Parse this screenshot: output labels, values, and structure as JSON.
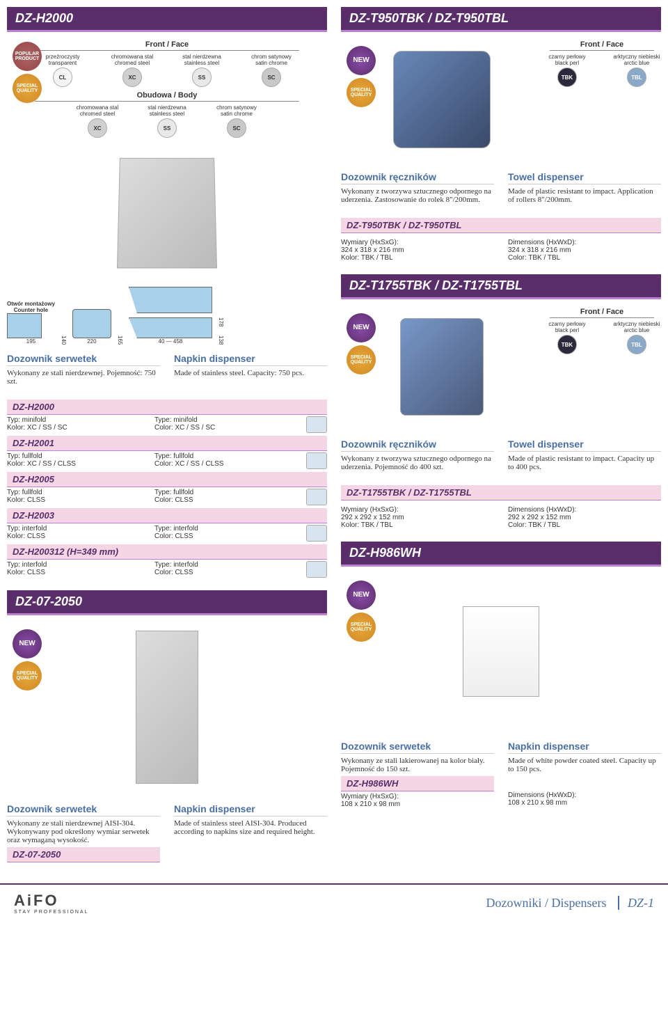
{
  "left": {
    "h2000": {
      "title": "DZ-H2000",
      "front_label": "Front / Face",
      "body_label": "Obudowa / Body",
      "front_swatches": [
        {
          "code": "CL",
          "pl": "przeźroczysty",
          "en": "transparent",
          "cls": "cl"
        },
        {
          "code": "XC",
          "pl": "chromowana stal",
          "en": "chromed steel",
          "cls": "xc"
        },
        {
          "code": "SS",
          "pl": "stal nierdzewna",
          "en": "stainless steel",
          "cls": "ss"
        },
        {
          "code": "SC",
          "pl": "chrom satynowy",
          "en": "satin chrome",
          "cls": "sc"
        }
      ],
      "body_swatches": [
        {
          "code": "XC",
          "pl": "chromowana stal",
          "en": "chromed steel",
          "cls": "xc"
        },
        {
          "code": "SS",
          "pl": "stal nierdzewna",
          "en": "stainless steel",
          "cls": "ss"
        },
        {
          "code": "SC",
          "pl": "chrom satynowy",
          "en": "satin chrome",
          "cls": "sc"
        }
      ],
      "badges": [
        "POPULAR PRODUCT",
        "SPECIAL QUALITY"
      ],
      "counter_hole": "Otwór montażowy\nCounter hole",
      "dims": {
        "a": "140",
        "b": "195",
        "c": "165",
        "d": "220",
        "e": "40",
        "f": "458",
        "g": "178",
        "h": "138"
      },
      "desc_pl_title": "Dozownik serwetek",
      "desc_pl": "Wykonany ze stali nierdzewnej. Pojemność: 750 szt.",
      "desc_en_title": "Napkin dispenser",
      "desc_en": "Made of stainless steel. Capacity: 750 pcs.",
      "variants": [
        {
          "model": "DZ-H2000",
          "pl": "Typ: minifold\nKolor: XC / SS / SC",
          "en": "Type: minifold\nColor: XC / SS / SC"
        },
        {
          "model": "DZ-H2001",
          "pl": "Typ: fullfold\nKolor: XC / SS / CLSS",
          "en": "Type: fullfold\nColor: XC / SS / CLSS"
        },
        {
          "model": "DZ-H2005",
          "pl": "Typ: fullfold\nKolor: CLSS",
          "en": "Type: fullfold\nColor: CLSS"
        },
        {
          "model": "DZ-H2003",
          "pl": "Typ: interfold\nKolor: CLSS",
          "en": "Type: interfold\nColor: CLSS"
        },
        {
          "model": "DZ-H200312 (H=349 mm)",
          "pl": "Typ: interfold\nKolor: CLSS",
          "en": "Type: interfold\nColor: CLSS"
        }
      ]
    },
    "dz07": {
      "title": "DZ-07-2050",
      "badges": [
        "NEW",
        "SPECIAL QUALITY"
      ],
      "desc_pl_title": "Dozownik serwetek",
      "desc_pl": "Wykonany ze stali nierdzewnej AISI-304. Wykonywany pod określony wymiar serwetek oraz wymaganą wysokość.",
      "desc_en_title": "Napkin dispenser",
      "desc_en": "Made of stainless steel AISI-304. Produced according to napkins size and required height.",
      "model": "DZ-07-2050"
    }
  },
  "right": {
    "t950": {
      "title": "DZ-T950TBK / DZ-T950TBL",
      "front_label": "Front / Face",
      "swatches": [
        {
          "code": "TBK",
          "pl": "czarny perłowy",
          "en": "black perl",
          "cls": "tbk"
        },
        {
          "code": "TBL",
          "pl": "arktyczny niebieski",
          "en": "arctic blue",
          "cls": "tbl"
        }
      ],
      "badges": [
        "NEW",
        "SPECIAL QUALITY"
      ],
      "desc_pl_title": "Dozownik ręczników",
      "desc_pl": "Wykonany z tworzywa sztucznego odpornego na uderzenia. Zastosowanie do rolek 8\"/200mm.",
      "desc_en_title": "Towel dispenser",
      "desc_en": "Made of plastic resistant to impact. Application of rollers 8\"/200mm.",
      "model": "DZ-T950TBK / DZ-T950TBL",
      "spec_pl": "Wymiary (HxSxG):\n324 x 318 x 216 mm\nKolor: TBK / TBL",
      "spec_en": "Dimensions (HxWxD):\n324 x 318 x 216 mm\nColor: TBK / TBL"
    },
    "t1755": {
      "title": "DZ-T1755TBK / DZ-T1755TBL",
      "front_label": "Front / Face",
      "swatches": [
        {
          "code": "TBK",
          "pl": "czarny perłowy",
          "en": "black perl",
          "cls": "tbk"
        },
        {
          "code": "TBL",
          "pl": "arktyczny niebieski",
          "en": "arctic blue",
          "cls": "tbl"
        }
      ],
      "badges": [
        "NEW",
        "SPECIAL QUALITY"
      ],
      "desc_pl_title": "Dozownik ręczników",
      "desc_pl": "Wykonany z tworzywa sztucznego odpornego na uderzenia. Pojemność do 400 szt.",
      "desc_en_title": "Towel dispenser",
      "desc_en": "Made of plastic resistant to impact. Capacity up to 400 pcs.",
      "model": "DZ-T1755TBK / DZ-T1755TBL",
      "spec_pl": "Wymiary (HxSxG):\n292 x 292 x 152 mm\nKolor: TBK / TBL",
      "spec_en": "Dimensions (HxWxD):\n292 x 292 x 152 mm\nColor: TBK / TBL"
    },
    "h986": {
      "title": "DZ-H986WH",
      "badges": [
        "NEW",
        "SPECIAL QUALITY"
      ],
      "desc_pl_title": "Dozownik serwetek",
      "desc_pl": "Wykonany ze stali lakierowanej na kolor biały. Pojemność do 150 szt.",
      "desc_en_title": "Napkin dispenser",
      "desc_en": "Made of white powder coated steel. Capacity up to 150 pcs.",
      "model": "DZ-H986WH",
      "spec_pl": "Wymiary (HxSxG):\n108 x 210 x 98 mm",
      "spec_en": "Dimensions (HxWxD):\n108 x 210 x 98 mm"
    }
  },
  "footer": {
    "logo": "AiFO",
    "logo_sub": "STAY PROFESSIONAL",
    "cat": "Dozowniki / Dispensers",
    "code": "DZ-1"
  }
}
